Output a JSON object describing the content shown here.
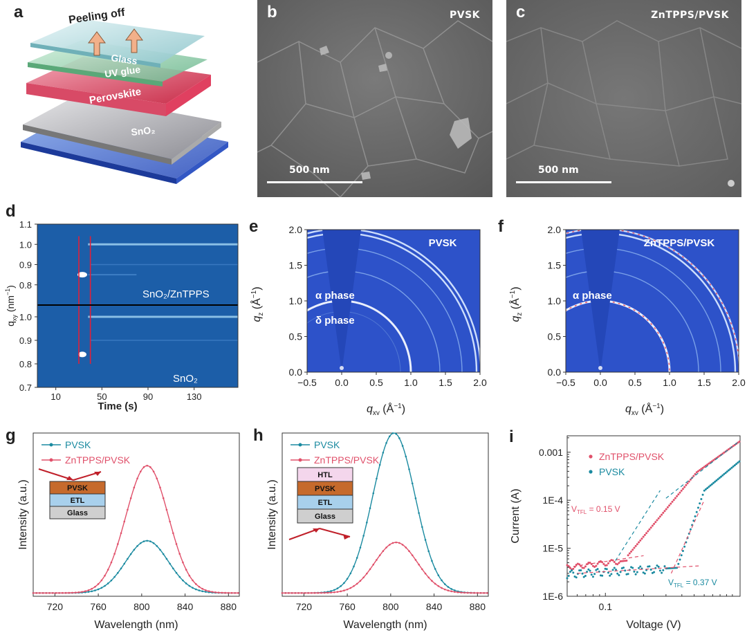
{
  "panels": {
    "a": {
      "label": "a",
      "layers": [
        "Glass",
        "UV glue",
        "Perovskite",
        "SnO₂"
      ],
      "arrow_text": "Peeling off"
    },
    "b": {
      "label": "b",
      "tag": "PVSK",
      "scale": "500 nm"
    },
    "c": {
      "label": "c",
      "tag": "ZnTPPS/PVSK",
      "scale": "500 nm"
    },
    "d": {
      "label": "d",
      "upper_tag": "SnO₂/ZnTPPS",
      "lower_tag": "SnO₂"
    },
    "e": {
      "label": "e",
      "tag": "PVSK",
      "alpha": "α phase",
      "delta": "δ phase"
    },
    "f": {
      "label": "f",
      "tag": "ZnTPPS/PVSK",
      "alpha": "α phase"
    },
    "g": {
      "label": "g",
      "stack": [
        "PVSK",
        "ETL",
        "Glass"
      ]
    },
    "h": {
      "label": "h",
      "stack": [
        "HTL",
        "PVSK",
        "ETL",
        "Glass"
      ]
    },
    "i": {
      "label": "i",
      "vtfl_red": "V",
      "vtfl_red_sub": "TFL",
      "vtfl_red_val": " = 0.15 V",
      "vtfl_blue": "V",
      "vtfl_blue_sub": "TFL",
      "vtfl_blue_val": " = 0.37 V"
    }
  },
  "colors": {
    "pvsk": "#1a8aa0",
    "zn": "#e0506a",
    "gi_bg": "#2d52c9"
  },
  "chart_data": [
    {
      "id": "d",
      "type": "heatmap",
      "xlabel": "Time (s)",
      "ylabel": "q",
      "ylabel_sub": "xy",
      "ylabel_unit": " (nm",
      "x_ticks": [
        "10",
        "50",
        "90",
        "130"
      ],
      "y_ticks_upper": [
        "1.1",
        "1.0",
        "0.9",
        "0.8"
      ],
      "y_ticks_lower": [
        "1.0",
        "0.9",
        "0.8",
        "0.7"
      ],
      "x_range": [
        -6,
        168
      ],
      "features": [
        {
          "name": "SnO2/ZnTPPS",
          "q": [
            0.85,
            1.0
          ],
          "t_start": 30,
          "t_end": 40
        },
        {
          "name": "SnO2",
          "q": [
            0.84,
            1.0
          ],
          "t_start": 30,
          "t_end": 40
        }
      ]
    },
    {
      "id": "e",
      "type": "heatmap",
      "xlabel": "q",
      "xlabel_sub": "xy",
      "xlabel_unit": " (Å",
      "ylabel": "q",
      "ylabel_sub": "z",
      "ylabel_unit": " (Å",
      "x_ticks": [
        "−0.5",
        "0.0",
        "0.5",
        "1.0",
        "1.5",
        "2.0"
      ],
      "y_ticks": [
        "0.0",
        "0.5",
        "1.0",
        "1.5",
        "2.0"
      ],
      "xlim": [
        -0.5,
        2.0
      ],
      "ylim": [
        0,
        2.0
      ],
      "rings_q": [
        1.0,
        1.42,
        1.74,
        1.95,
        2.01
      ]
    },
    {
      "id": "f",
      "type": "heatmap",
      "xlabel": "q",
      "xlabel_sub": "xy",
      "xlabel_unit": " (Å",
      "ylabel": "q",
      "ylabel_sub": "z",
      "ylabel_unit": " (Å",
      "x_ticks": [
        "−0.5",
        "0.0",
        "0.5",
        "1.0",
        "1.5",
        "2.0"
      ],
      "y_ticks": [
        "0.0",
        "0.5",
        "1.0",
        "1.5",
        "2.0"
      ],
      "xlim": [
        -0.5,
        2.0
      ],
      "ylim": [
        0,
        2.0
      ],
      "rings_q": [
        1.0,
        1.42,
        1.74,
        1.95,
        2.01
      ]
    },
    {
      "id": "g",
      "type": "line",
      "xlabel": "Wavelength (nm)",
      "ylabel": "Intensity (a.u.)",
      "x_ticks": [
        "720",
        "760",
        "800",
        "840",
        "880"
      ],
      "xlim": [
        700,
        890
      ],
      "series": [
        {
          "name": "PVSK",
          "peak": 805,
          "fwhm": 46,
          "amp": 0.32,
          "base": 0.02
        },
        {
          "name": "ZnTPPS/PVSK",
          "peak": 805,
          "fwhm": 46,
          "amp": 0.78,
          "base": 0.02
        }
      ]
    },
    {
      "id": "h",
      "type": "line",
      "xlabel": "Wavelength (nm)",
      "ylabel": "Intensity (a.u.)",
      "x_ticks": [
        "720",
        "760",
        "800",
        "840",
        "880"
      ],
      "xlim": [
        700,
        890
      ],
      "series": [
        {
          "name": "PVSK",
          "peak": 803,
          "fwhm": 46,
          "amp": 0.98,
          "base": 0.02
        },
        {
          "name": "ZnTPPS/PVSK",
          "peak": 805,
          "fwhm": 46,
          "amp": 0.31,
          "base": 0.02
        }
      ]
    },
    {
      "id": "i",
      "type": "scatter",
      "xlabel": "Voltage (V)",
      "ylabel": "Current (A)",
      "x_ticks": [
        "0.1"
      ],
      "y_ticks": [
        "0.001",
        "1E-4",
        "1E-5",
        "1E-6"
      ],
      "xscale": "log",
      "yscale": "log",
      "xlim": [
        0.05,
        1.15
      ],
      "ylim": [
        1e-06,
        0.0022
      ],
      "series": [
        {
          "name": "ZnTPPS/PVSK",
          "vtfl": 0.15
        },
        {
          "name": "PVSK",
          "vtfl": 0.37
        }
      ]
    }
  ]
}
